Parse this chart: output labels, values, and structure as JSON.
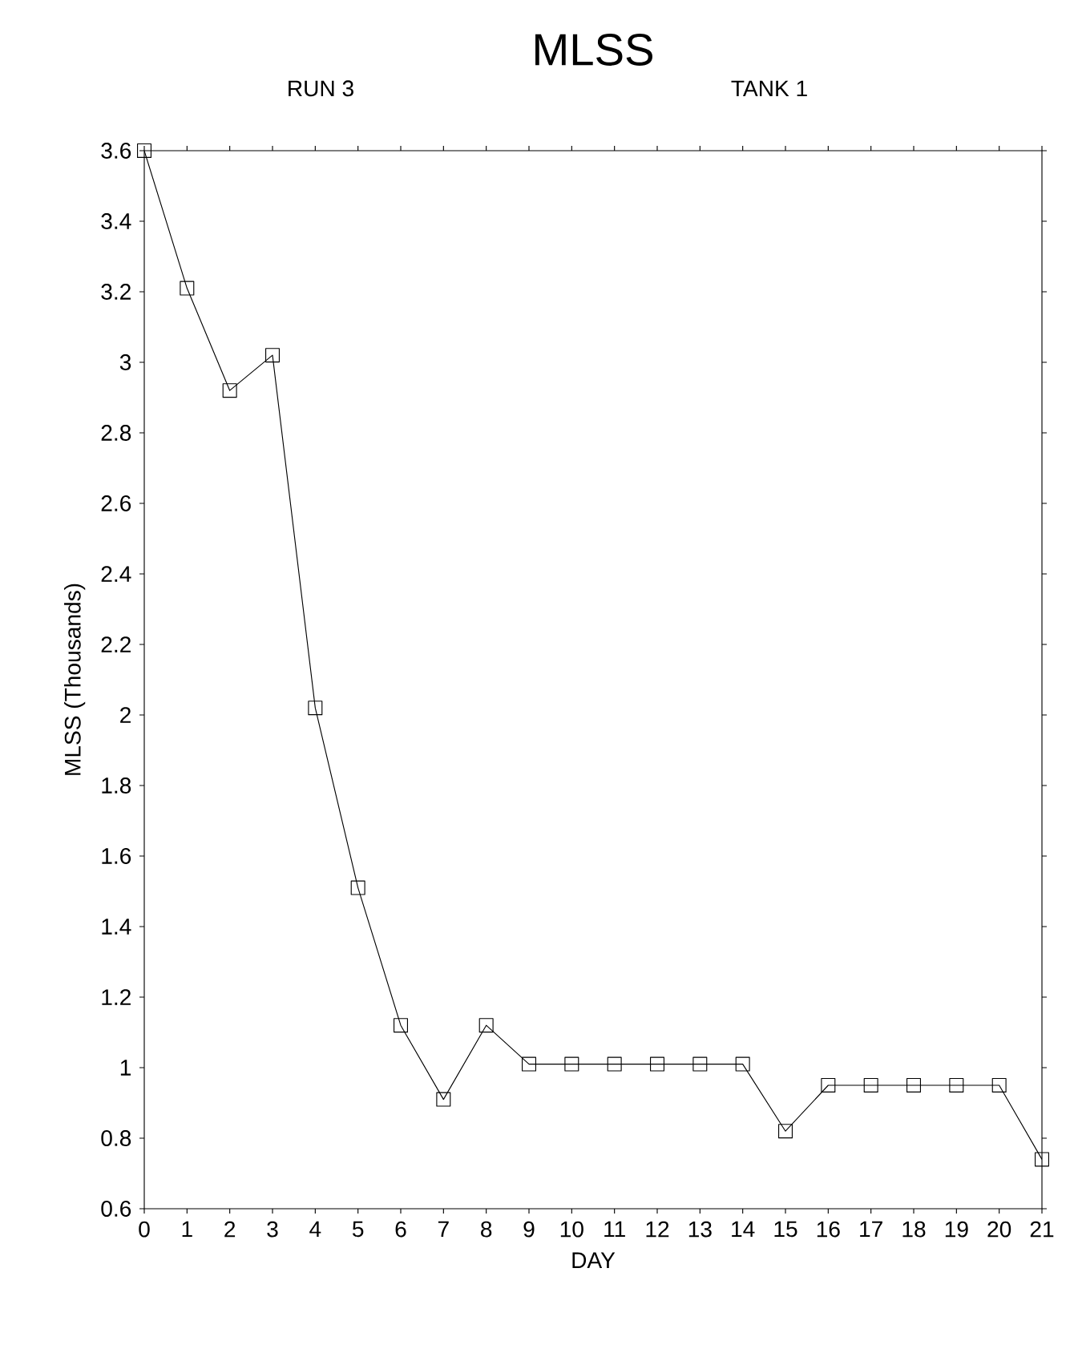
{
  "chart_data": {
    "type": "line",
    "title": "MLSS",
    "annotations": [
      "RUN 3",
      "TANK 1"
    ],
    "xlabel": "DAY",
    "ylabel": "MLSS (Thousands)",
    "x": [
      0,
      1,
      2,
      3,
      4,
      5,
      6,
      7,
      8,
      9,
      10,
      11,
      12,
      13,
      14,
      15,
      16,
      17,
      18,
      19,
      20,
      21
    ],
    "series": [
      {
        "color": "#000000",
        "values": [
          3.6,
          3.21,
          2.92,
          3.02,
          2.02,
          1.51,
          1.12,
          0.91,
          1.12,
          1.01,
          1.01,
          1.01,
          1.01,
          1.01,
          1.01,
          0.82,
          0.95,
          0.95,
          0.95,
          0.95,
          0.95,
          0.74
        ]
      }
    ],
    "xlim": [
      0,
      21
    ],
    "xticks": [
      0,
      1,
      2,
      3,
      4,
      5,
      6,
      7,
      8,
      9,
      10,
      11,
      12,
      13,
      14,
      15,
      16,
      17,
      18,
      19,
      20,
      21
    ],
    "ylim": [
      0.6,
      3.6
    ],
    "yticks": [
      0.6,
      0.8,
      1,
      1.2,
      1.4,
      1.6,
      1.8,
      2,
      2.2,
      2.4,
      2.6,
      2.8,
      3,
      3.2,
      3.4,
      3.6
    ],
    "marker": "square"
  }
}
